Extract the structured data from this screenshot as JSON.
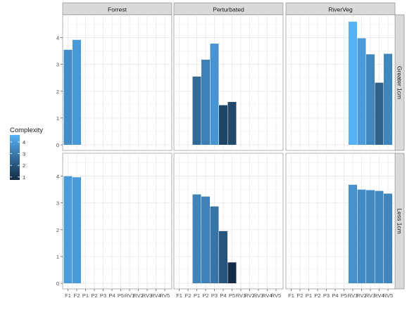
{
  "chart_data": {
    "type": "bar",
    "title": "",
    "xlabel": "",
    "ylabel": "",
    "ylim": [
      0,
      4.7
    ],
    "yticks": [
      0,
      1,
      2,
      3,
      4
    ],
    "x_tick_labels": [
      "F1",
      "F2",
      "P1",
      "P2",
      "P3",
      "P4",
      "P5",
      "RV1",
      "RV2",
      "RV3",
      "RV4",
      "RV5"
    ],
    "facet_columns": [
      "Forrest",
      "Perturbated",
      "RiverVeg"
    ],
    "facet_rows": [
      "Greater 1cm",
      "Less 1cm"
    ],
    "grid": true,
    "legend": {
      "title": "Complexity",
      "position": "left",
      "ticks": [
        1,
        2,
        3,
        4
      ],
      "range": [
        0.75,
        4.6
      ],
      "color_low": "#132b43",
      "color_high": "#56b1f7"
    },
    "panel_strip_color": "#d9d9d9",
    "panels": [
      {
        "column": "Forrest",
        "row": "Greater 1cm",
        "bars": [
          {
            "category": "F1",
            "value": 3.55
          },
          {
            "category": "F2",
            "value": 3.92
          }
        ]
      },
      {
        "column": "Perturbated",
        "row": "Greater 1cm",
        "bars": [
          {
            "category": "P1",
            "value": 2.55
          },
          {
            "category": "P2",
            "value": 3.18
          },
          {
            "category": "P3",
            "value": 3.78
          },
          {
            "category": "P4",
            "value": 1.48
          },
          {
            "category": "P5",
            "value": 1.6
          }
        ]
      },
      {
        "column": "RiverVeg",
        "row": "Greater 1cm",
        "bars": [
          {
            "category": "RV1",
            "value": 4.6
          },
          {
            "category": "RV2",
            "value": 3.98
          },
          {
            "category": "RV3",
            "value": 3.38
          },
          {
            "category": "RV4",
            "value": 2.32
          },
          {
            "category": "RV5",
            "value": 3.4
          }
        ]
      },
      {
        "column": "Forrest",
        "row": "Less 1cm",
        "bars": [
          {
            "category": "F1",
            "value": 4.0
          },
          {
            "category": "F2",
            "value": 3.96
          }
        ]
      },
      {
        "column": "Perturbated",
        "row": "Less 1cm",
        "bars": [
          {
            "category": "P1",
            "value": 3.32
          },
          {
            "category": "P2",
            "value": 3.24
          },
          {
            "category": "P3",
            "value": 2.87
          },
          {
            "category": "P4",
            "value": 1.95
          },
          {
            "category": "P5",
            "value": 0.78
          }
        ]
      },
      {
        "column": "RiverVeg",
        "row": "Less 1cm",
        "bars": [
          {
            "category": "RV1",
            "value": 3.68
          },
          {
            "category": "RV2",
            "value": 3.5
          },
          {
            "category": "RV3",
            "value": 3.48
          },
          {
            "category": "RV4",
            "value": 3.45
          },
          {
            "category": "RV5",
            "value": 3.35
          }
        ]
      }
    ]
  }
}
